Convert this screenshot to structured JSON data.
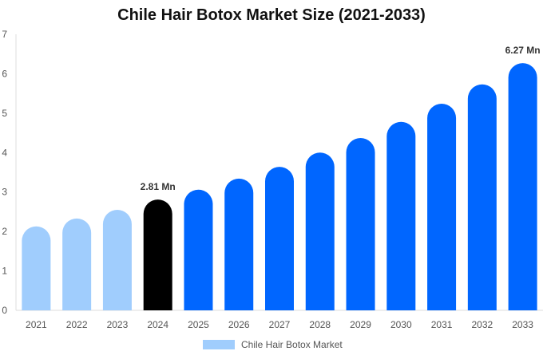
{
  "chart_data": {
    "type": "bar",
    "title": "Chile Hair Botox Market Size (2021-2033)",
    "xlabel": "",
    "ylabel": "",
    "ylim": [
      0,
      7
    ],
    "yticks": [
      0,
      1,
      2,
      3,
      4,
      5,
      6,
      7
    ],
    "grid": false,
    "legend_position": "bottom",
    "categories": [
      "2021",
      "2022",
      "2023",
      "2024",
      "2025",
      "2026",
      "2027",
      "2028",
      "2029",
      "2030",
      "2031",
      "2032",
      "2033"
    ],
    "series": [
      {
        "name": "Chile Hair Botox Market",
        "values": [
          2.13,
          2.33,
          2.55,
          2.81,
          3.06,
          3.34,
          3.64,
          4.0,
          4.37,
          4.78,
          5.24,
          5.73,
          6.27
        ]
      }
    ],
    "bar_colors": [
      "#a0cdfd",
      "#a0cdfd",
      "#a0cdfd",
      "#000000",
      "#0066ff",
      "#0066ff",
      "#0066ff",
      "#0066ff",
      "#0066ff",
      "#0066ff",
      "#0066ff",
      "#0066ff",
      "#0066ff"
    ],
    "annotations": [
      {
        "category": "2024",
        "label": "2.81 Mn"
      },
      {
        "category": "2033",
        "label": "6.27 Mn"
      }
    ]
  },
  "legend": {
    "label": "Chile Hair Botox Market",
    "color": "#a0cdfd"
  }
}
